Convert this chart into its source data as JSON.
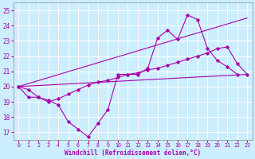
{
  "background_color": "#cceeff",
  "grid_color": "#ffffff",
  "line_color": "#aa00aa",
  "xlim": [
    -0.5,
    23.5
  ],
  "ylim": [
    16.5,
    25.5
  ],
  "yticks": [
    17,
    18,
    19,
    20,
    21,
    22,
    23,
    24,
    25
  ],
  "xticks": [
    0,
    1,
    2,
    3,
    4,
    5,
    6,
    7,
    8,
    9,
    10,
    11,
    12,
    13,
    14,
    15,
    16,
    17,
    18,
    19,
    20,
    21,
    22,
    23
  ],
  "xlabel": "Windchill (Refroidissement éolien,°C)",
  "series1_x": [
    0,
    1,
    2,
    3,
    4,
    5,
    6,
    7,
    8,
    9,
    10,
    11,
    12,
    13,
    14,
    15,
    16,
    17,
    18,
    19,
    20,
    21,
    22
  ],
  "series1_y": [
    20.0,
    19.8,
    19.3,
    19.1,
    18.8,
    17.7,
    17.2,
    16.7,
    17.6,
    18.5,
    20.8,
    20.8,
    20.8,
    21.2,
    23.2,
    23.7,
    23.1,
    24.7,
    24.4,
    22.5,
    21.7,
    21.3,
    20.8
  ],
  "series2_x": [
    0,
    1,
    2,
    3,
    4,
    5,
    6,
    7,
    8,
    9,
    10,
    11,
    12,
    13,
    14,
    15,
    16,
    17,
    18,
    19,
    20,
    21,
    22,
    23
  ],
  "series2_y": [
    20.0,
    19.3,
    19.3,
    19.0,
    19.2,
    19.5,
    19.8,
    20.1,
    20.3,
    20.4,
    20.6,
    20.8,
    20.9,
    21.1,
    21.2,
    21.4,
    21.6,
    21.8,
    22.0,
    22.2,
    22.5,
    22.6,
    21.5,
    20.8
  ],
  "series3_x": [
    0,
    23
  ],
  "series3_y": [
    20.0,
    20.8
  ],
  "series4_x": [
    0,
    23
  ],
  "series4_y": [
    20.0,
    24.5
  ]
}
